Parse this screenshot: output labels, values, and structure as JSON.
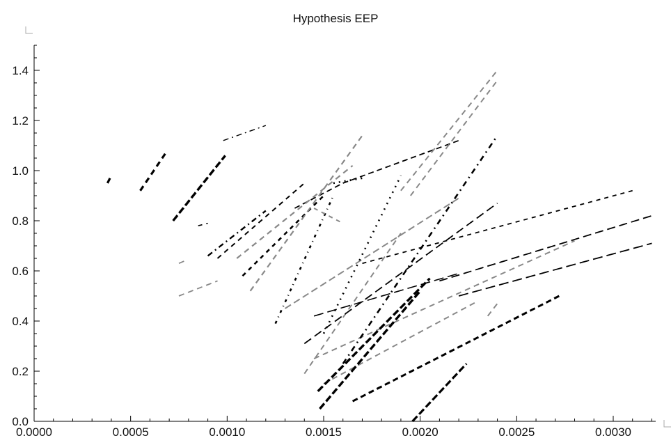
{
  "chart_data": {
    "type": "line",
    "title": "Hypothesis  EEP",
    "xlabel": "",
    "ylabel": "",
    "xlim": [
      0,
      0.00322
    ],
    "ylim": [
      0,
      1.5
    ],
    "x_ticks": [
      {
        "value": 0,
        "label": "0.0000"
      },
      {
        "value": 0.0005,
        "label": "0.0005"
      },
      {
        "value": 0.001,
        "label": "0.0010"
      },
      {
        "value": 0.0015,
        "label": "0.0015"
      },
      {
        "value": 0.002,
        "label": "0.0020"
      },
      {
        "value": 0.0025,
        "label": "0.0025"
      },
      {
        "value": 0.003,
        "label": "0.0030"
      }
    ],
    "y_ticks": [
      {
        "value": 0,
        "label": "0.0"
      },
      {
        "value": 0.2,
        "label": "0.2"
      },
      {
        "value": 0.4,
        "label": "0.4"
      },
      {
        "value": 0.6,
        "label": "0.6"
      },
      {
        "value": 0.8,
        "label": "0.8"
      },
      {
        "value": 1.0,
        "label": "1.0"
      },
      {
        "value": 1.2,
        "label": "1.2"
      },
      {
        "value": 1.4,
        "label": "1.4"
      }
    ],
    "grid": false,
    "legend": "none",
    "colors": {
      "black": "#000000",
      "gray": "#888888"
    },
    "series": [
      {
        "color": "black",
        "dash": "8,6",
        "width": 3.2,
        "points": [
          [
            0.00038,
            0.95
          ],
          [
            0.0004,
            0.98
          ]
        ]
      },
      {
        "color": "black",
        "dash": "8,6",
        "width": 3.2,
        "points": [
          [
            0.00055,
            0.92
          ],
          [
            0.00069,
            1.08
          ]
        ]
      },
      {
        "color": "black",
        "dash": "10,4",
        "width": 3.4,
        "points": [
          [
            0.00072,
            0.8
          ],
          [
            0.00099,
            1.06
          ]
        ]
      },
      {
        "color": "black",
        "dash": "6,6",
        "width": 1.6,
        "points": [
          [
            0.00085,
            0.78
          ],
          [
            0.0009,
            0.79
          ]
        ]
      },
      {
        "color": "black",
        "dash": "8,5,2,5",
        "width": 1.4,
        "points": [
          [
            0.00098,
            1.12
          ],
          [
            0.0012,
            1.18
          ]
        ]
      },
      {
        "color": "black",
        "dash": "7,6",
        "width": 2.0,
        "points": [
          [
            0.00095,
            0.65
          ],
          [
            0.0014,
            0.95
          ]
        ]
      },
      {
        "color": "black",
        "dash": "8,5,2,5",
        "width": 2.4,
        "points": [
          [
            0.0009,
            0.66
          ],
          [
            0.0012,
            0.84
          ]
        ]
      },
      {
        "color": "black",
        "dash": "6,6",
        "width": 2.6,
        "points": [
          [
            0.00108,
            0.58
          ],
          [
            0.0015,
            0.9
          ]
        ]
      },
      {
        "color": "black",
        "dash": "8,5",
        "width": 1.8,
        "points": [
          [
            0.00135,
            0.85
          ],
          [
            0.0016,
            0.95
          ],
          [
            0.0022,
            1.12
          ]
        ]
      },
      {
        "color": "black",
        "dash": "4,6,1,6",
        "width": 2.6,
        "points": [
          [
            0.00125,
            0.39
          ],
          [
            0.00155,
            0.9
          ]
        ]
      },
      {
        "color": "black",
        "dash": "2,6",
        "width": 2.6,
        "points": [
          [
            0.00155,
            0.95
          ],
          [
            0.0017,
            0.97
          ]
        ]
      },
      {
        "color": "gray",
        "dash": "8,6",
        "width": 1.8,
        "points": [
          [
            0.00075,
            0.63
          ],
          [
            0.00078,
            0.64
          ]
        ]
      },
      {
        "color": "gray",
        "dash": "8,6",
        "width": 1.8,
        "points": [
          [
            0.00075,
            0.5
          ],
          [
            0.00095,
            0.56
          ]
        ]
      },
      {
        "color": "gray",
        "dash": "8,6",
        "width": 2.2,
        "points": [
          [
            0.00105,
            0.65
          ],
          [
            0.00165,
            1.02
          ]
        ]
      },
      {
        "color": "gray",
        "dash": "8,6",
        "width": 2.2,
        "points": [
          [
            0.00112,
            0.52
          ],
          [
            0.0017,
            1.14
          ]
        ]
      },
      {
        "color": "gray",
        "dash": "6,6",
        "width": 2.0,
        "points": [
          [
            0.00145,
            0.85
          ],
          [
            0.0016,
            0.79
          ]
        ]
      },
      {
        "color": "gray",
        "dash": "10,5",
        "width": 2.0,
        "points": [
          [
            0.0013,
            0.45
          ],
          [
            0.0022,
            0.89
          ]
        ]
      },
      {
        "color": "gray",
        "dash": "8,6",
        "width": 2.0,
        "points": [
          [
            0.0019,
            0.92
          ],
          [
            0.0024,
            1.4
          ]
        ]
      },
      {
        "color": "gray",
        "dash": "8,6",
        "width": 2.0,
        "points": [
          [
            0.00195,
            0.9
          ],
          [
            0.0024,
            1.36
          ]
        ]
      },
      {
        "color": "gray",
        "dash": "8,6",
        "width": 2.0,
        "points": [
          [
            0.0014,
            0.19
          ],
          [
            0.0019,
            0.75
          ]
        ]
      },
      {
        "color": "gray",
        "dash": "8,6",
        "width": 2.0,
        "points": [
          [
            0.00145,
            0.25
          ],
          [
            0.0028,
            0.72
          ]
        ]
      },
      {
        "color": "gray",
        "dash": "8,6",
        "width": 2.0,
        "points": [
          [
            0.0015,
            0.15
          ],
          [
            0.0023,
            0.48
          ]
        ]
      },
      {
        "color": "gray",
        "dash": "8,6",
        "width": 2.0,
        "points": [
          [
            0.00235,
            0.42
          ],
          [
            0.0024,
            0.47
          ]
        ]
      },
      {
        "color": "black",
        "dash": "14,6",
        "width": 1.6,
        "points": [
          [
            0.00145,
            0.42
          ],
          [
            0.0022,
            0.59
          ]
        ]
      },
      {
        "color": "black",
        "dash": "12,6",
        "width": 1.8,
        "points": [
          [
            0.0014,
            0.31
          ],
          [
            0.0024,
            0.87
          ]
        ]
      },
      {
        "color": "black",
        "dash": "6,6",
        "width": 1.8,
        "points": [
          [
            0.0017,
            0.63
          ],
          [
            0.0031,
            0.92
          ]
        ]
      },
      {
        "color": "black",
        "dash": "12,6",
        "width": 1.8,
        "points": [
          [
            0.0021,
            0.56
          ],
          [
            0.0032,
            0.82
          ]
        ]
      },
      {
        "color": "black",
        "dash": "14,6",
        "width": 1.8,
        "points": [
          [
            0.0022,
            0.5
          ],
          [
            0.0032,
            0.71
          ]
        ]
      },
      {
        "color": "black",
        "dash": "8,6,2,6",
        "width": 2.6,
        "points": [
          [
            0.0016,
            0.23
          ],
          [
            0.0024,
            1.14
          ]
        ]
      },
      {
        "color": "black",
        "dash": "2,7",
        "width": 2.6,
        "points": [
          [
            0.0015,
            0.35
          ],
          [
            0.0019,
            0.98
          ]
        ]
      },
      {
        "color": "black",
        "dash": "10,4",
        "width": 3.4,
        "points": [
          [
            0.00147,
            0.12
          ],
          [
            0.00205,
            0.57
          ]
        ]
      },
      {
        "color": "black",
        "dash": "10,4",
        "width": 3.4,
        "points": [
          [
            0.00148,
            0.05
          ],
          [
            0.002,
            0.52
          ]
        ]
      },
      {
        "color": "black",
        "dash": "8,5",
        "width": 3.0,
        "points": [
          [
            0.00165,
            0.08
          ],
          [
            0.00272,
            0.5
          ]
        ]
      },
      {
        "color": "black",
        "dash": "10,4",
        "width": 3.2,
        "points": [
          [
            0.00196,
            0.0
          ],
          [
            0.00224,
            0.23
          ]
        ]
      }
    ]
  }
}
